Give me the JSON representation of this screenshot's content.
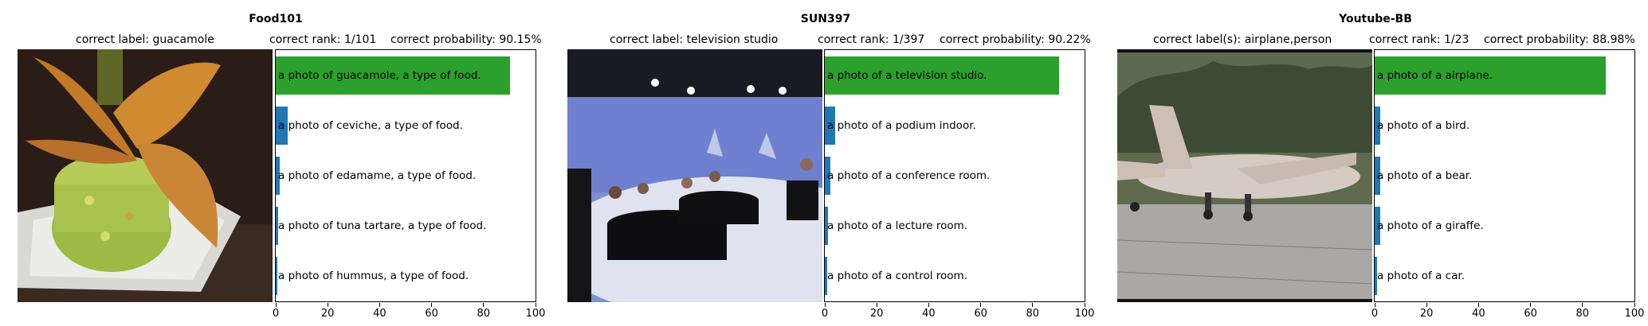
{
  "colors": {
    "correct": "#2ca02c",
    "other": "#1f77b4"
  },
  "chart_data": [
    {
      "type": "bar",
      "title": "Food101",
      "correct_label_text": "correct label: guacamole",
      "rank_text": "correct rank: 1/101",
      "probability_text": "correct probability: 90.15%",
      "image_icon": "guacamole-photo",
      "categories": [
        "a photo of guacamole, a type of food.",
        "a photo of ceviche, a type of food.",
        "a photo of edamame, a type of food.",
        "a photo of tuna tartare, a type of food.",
        "a photo of hummus, a type of food."
      ],
      "values": [
        90.15,
        4.5,
        1.6,
        1.0,
        0.5
      ],
      "correct_index": 0,
      "xlim": [
        0,
        100
      ],
      "xticks": [
        "0",
        "20",
        "40",
        "60",
        "80",
        "100"
      ]
    },
    {
      "type": "bar",
      "title": "SUN397",
      "correct_label_text": "correct label: television studio",
      "rank_text": "correct rank: 1/397",
      "probability_text": "correct probability: 90.22%",
      "image_icon": "television-studio-photo",
      "categories": [
        "a photo of a television studio.",
        "a photo of a podium indoor.",
        "a photo of a conference room.",
        "a photo of a lecture room.",
        "a photo of a control room."
      ],
      "values": [
        90.22,
        4.0,
        2.2,
        1.3,
        0.8
      ],
      "correct_index": 0,
      "xlim": [
        0,
        100
      ],
      "xticks": [
        "0",
        "20",
        "40",
        "60",
        "80",
        "100"
      ]
    },
    {
      "type": "bar",
      "title": "Youtube-BB",
      "correct_label_text": "correct label(s): airplane,person",
      "rank_text": "correct rank: 1/23",
      "probability_text": "correct probability: 88.98%",
      "image_icon": "airplane-photo",
      "categories": [
        "a photo of a airplane.",
        "a photo of a bird.",
        "a photo of a bear.",
        "a photo of a giraffe.",
        "a photo of a car."
      ],
      "values": [
        88.98,
        2.2,
        2.0,
        2.0,
        0.8
      ],
      "correct_index": 0,
      "xlim": [
        0,
        100
      ],
      "xticks": [
        "0",
        "20",
        "40",
        "60",
        "80",
        "100"
      ]
    }
  ]
}
